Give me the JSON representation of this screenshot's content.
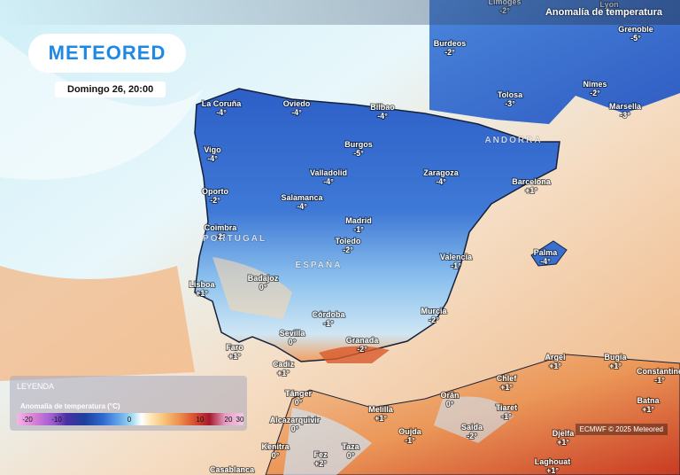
{
  "header": {
    "logo": "METEORED",
    "datetime": "Domingo 26, 20:00",
    "title": "Anomalía de temperatura"
  },
  "cities": [
    {
      "name": "Limoges",
      "value": "-2°"
    },
    {
      "name": "Lyon"
    },
    {
      "name": "Grenoble",
      "value": "-5°"
    },
    {
      "name": "Burdeos",
      "value": "-2°"
    },
    {
      "name": "Tolosa",
      "value": "-3°"
    },
    {
      "name": "Nîmes",
      "value": "-2°"
    },
    {
      "name": "Marsella",
      "value": "-3°"
    },
    {
      "name": "La Coruña",
      "value": "-4°"
    },
    {
      "name": "Oviedo",
      "value": "-4°"
    },
    {
      "name": "Bilbao",
      "value": "-4°"
    },
    {
      "name": "Burgos",
      "value": "-5°"
    },
    {
      "name": "Vigo",
      "value": "-4°"
    },
    {
      "name": "Valladolid",
      "value": "-4°"
    },
    {
      "name": "Zaragoza",
      "value": "-4°"
    },
    {
      "name": "Barcelona",
      "value": "+1°"
    },
    {
      "name": "Oporto",
      "value": "-2°"
    },
    {
      "name": "Salamanca",
      "value": "-4°"
    },
    {
      "name": "Coimbra",
      "value": "-2°"
    },
    {
      "name": "Madrid",
      "value": "-1°"
    },
    {
      "name": "Toledo",
      "value": "-2°"
    },
    {
      "name": "Palma",
      "value": "-4°"
    },
    {
      "name": "Valencia",
      "value": "-1°"
    },
    {
      "name": "Lisboa",
      "value": "+1°"
    },
    {
      "name": "Badajoz",
      "value": "0°"
    },
    {
      "name": "Córdoba",
      "value": "-1°"
    },
    {
      "name": "Murcia",
      "value": "-2°"
    },
    {
      "name": "Sevilla",
      "value": "0°"
    },
    {
      "name": "Granada",
      "value": "-2°"
    },
    {
      "name": "Faro",
      "value": "+1°"
    },
    {
      "name": "Cadiz",
      "value": "+1°"
    },
    {
      "name": "Argel",
      "value": "+1°"
    },
    {
      "name": "Bugia",
      "value": "+1°"
    },
    {
      "name": "Constantine",
      "value": "-1°"
    },
    {
      "name": "Chlef",
      "value": "+1°"
    },
    {
      "name": "Batna",
      "value": "+1°"
    },
    {
      "name": "Tánger",
      "value": "0°"
    },
    {
      "name": "Orán",
      "value": "0°"
    },
    {
      "name": "Tiaret",
      "value": "-1°"
    },
    {
      "name": "Melilla",
      "value": "+1°"
    },
    {
      "name": "Alcazarquivir",
      "value": "0°"
    },
    {
      "name": "Oujda",
      "value": "-1°"
    },
    {
      "name": "Saida",
      "value": "-2°"
    },
    {
      "name": "Djelfa",
      "value": "+1°"
    },
    {
      "name": "Kenitra",
      "value": "0°"
    },
    {
      "name": "Taza",
      "value": "0°"
    },
    {
      "name": "Fez",
      "value": "+2°"
    },
    {
      "name": "Laghouat",
      "value": "+1°"
    },
    {
      "name": "Casablanca"
    }
  ],
  "regions": [
    "ANDORRA",
    "PORTUGAL",
    "ESPAÑA"
  ],
  "legend": {
    "title": "LEYENDA",
    "subtitle": "Anomalía de temperatura (°C)",
    "ticks": [
      -20,
      -10,
      0,
      10,
      20,
      30
    ]
  },
  "credit": "ECMWF © 2025 Meteored"
}
